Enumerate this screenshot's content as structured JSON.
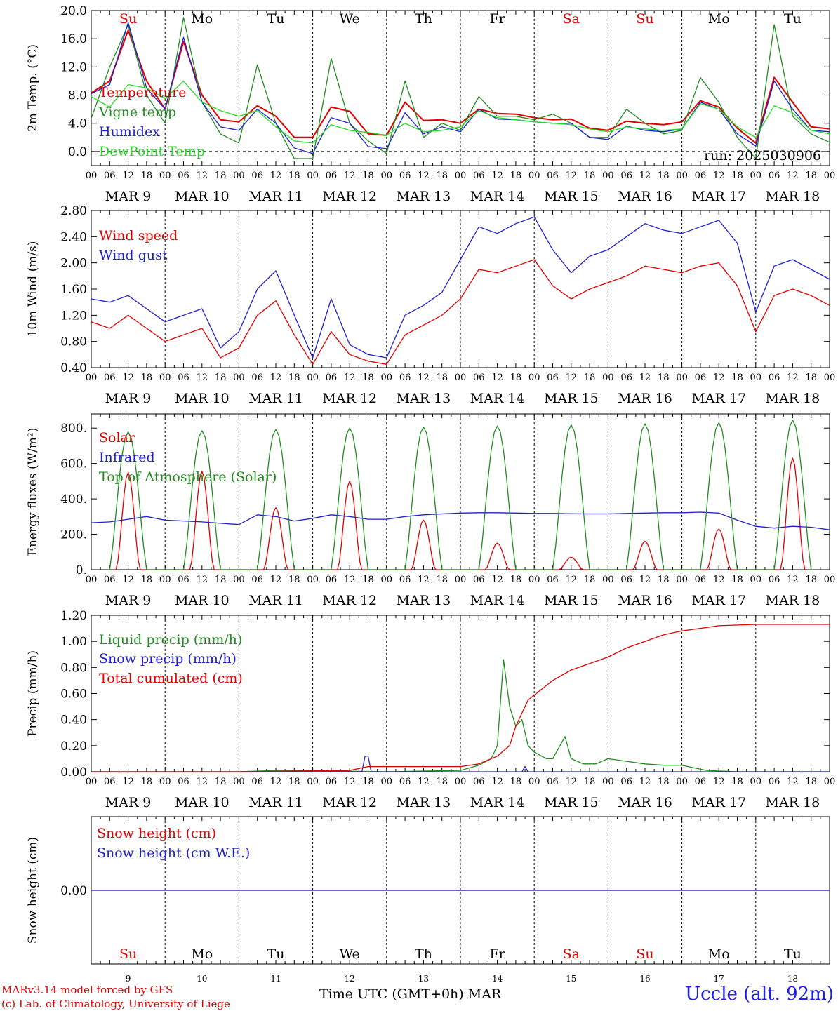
{
  "run_label": "run: 2025030906",
  "days": [
    "Su",
    "Mo",
    "Tu",
    "We",
    "Th",
    "Fr",
    "Sa",
    "Su",
    "Mo",
    "Tu"
  ],
  "day_colors": [
    "#e00000",
    "#000000",
    "#000000",
    "#000000",
    "#000000",
    "#000000",
    "#e00000",
    "#e00000",
    "#000000",
    "#000000"
  ],
  "dates": [
    "MAR  9",
    "MAR 10",
    "MAR 11",
    "MAR 12",
    "MAR 13",
    "MAR 14",
    "MAR 15",
    "MAR 16",
    "MAR 17",
    "MAR 18"
  ],
  "hour_ticks": [
    "00",
    "06",
    "12",
    "18"
  ],
  "bottom_day_numbers": [
    "9",
    "10",
    "11",
    "12",
    "13",
    "14",
    "15",
    "16",
    "17",
    "18"
  ],
  "footer": {
    "model": "MARv3.14 model forced by GFS",
    "credit": "(c) Lab. of Climatology, University of Liege",
    "xaxis": "Time UTC (GMT+0h)",
    "month": "MAR",
    "station": "Uccle (alt. 92m)"
  },
  "chart_data": [
    {
      "type": "line",
      "ylabel": "2m Temp. (°C)",
      "ylim": [
        -2,
        20
      ],
      "yticks": [
        "0.0",
        "4.0",
        "8.0",
        "12.0",
        "16.0",
        "20.0"
      ],
      "ytick_values": [
        0,
        4,
        8,
        12,
        16,
        20
      ],
      "zero_dashed": true,
      "x_hours_from_mar9_00": [
        0,
        12,
        36,
        60,
        84,
        108,
        132,
        156,
        180,
        204,
        228,
        240
      ],
      "series": [
        {
          "name": "Temperature",
          "color": "#e00000",
          "x": [
            0,
            6,
            12,
            18,
            24,
            30,
            36,
            42,
            48,
            54,
            60,
            66,
            72,
            78,
            84,
            90,
            96,
            102,
            108,
            114,
            120,
            126,
            132,
            138,
            144,
            150,
            156,
            162,
            168,
            174,
            180,
            186,
            192,
            198,
            204,
            210,
            216,
            222,
            228,
            234,
            240
          ],
          "values": [
            8.3,
            10,
            17.2,
            10,
            6,
            15.6,
            8,
            4.5,
            4.2,
            6.5,
            5,
            2,
            2,
            6.3,
            5.7,
            2.5,
            2.3,
            7,
            4.4,
            4.5,
            4,
            6,
            5.4,
            5.3,
            4.8,
            4.5,
            4.6,
            3.3,
            3,
            4.3,
            4,
            3.8,
            4.2,
            7.2,
            6.3,
            3.3,
            1.2,
            10.5,
            7,
            3.5,
            3.2
          ]
        },
        {
          "name": "Vigne temp",
          "color": "#228b22",
          "x": [
            0,
            6,
            12,
            18,
            24,
            30,
            36,
            42,
            48,
            54,
            60,
            66,
            72,
            78,
            84,
            90,
            96,
            102,
            108,
            114,
            120,
            126,
            132,
            138,
            144,
            150,
            156,
            162,
            168,
            174,
            180,
            186,
            192,
            198,
            204,
            210,
            216,
            222,
            228,
            234,
            240
          ],
          "values": [
            4.7,
            12,
            18,
            8,
            4,
            19,
            7,
            2.5,
            1.2,
            12.3,
            4,
            -1,
            -1,
            13.2,
            4,
            1.5,
            -0.3,
            10,
            2,
            4,
            3,
            7.8,
            5,
            5,
            4.5,
            5.3,
            4,
            2,
            2,
            6,
            4,
            2.5,
            3,
            10.5,
            7,
            2,
            -1,
            18,
            5,
            2.5,
            1.3
          ]
        },
        {
          "name": "Humidex",
          "color": "#2020d0",
          "x": [
            0,
            6,
            12,
            18,
            24,
            30,
            36,
            42,
            48,
            54,
            60,
            66,
            72,
            78,
            84,
            90,
            96,
            102,
            108,
            114,
            120,
            126,
            132,
            138,
            144,
            150,
            156,
            162,
            168,
            174,
            180,
            186,
            192,
            198,
            204,
            210,
            216,
            222,
            228,
            234,
            240
          ],
          "values": [
            8.2,
            9.5,
            18.3,
            9,
            6,
            16.2,
            7,
            3.5,
            3,
            6,
            4,
            0.5,
            -0.3,
            4.8,
            4,
            0.7,
            0.4,
            5.5,
            2.5,
            3.5,
            2.8,
            6,
            4.6,
            4.5,
            4.2,
            4,
            4,
            2,
            1.7,
            3.6,
            3,
            2.8,
            3.2,
            7,
            6,
            2.5,
            0.8,
            10,
            6,
            3,
            2.8
          ]
        },
        {
          "name": "DewPoint Temp",
          "color": "#22dd22",
          "x": [
            0,
            6,
            12,
            18,
            24,
            30,
            36,
            42,
            48,
            54,
            60,
            66,
            72,
            78,
            84,
            90,
            96,
            102,
            108,
            114,
            120,
            126,
            132,
            138,
            144,
            150,
            156,
            162,
            168,
            174,
            180,
            186,
            192,
            198,
            204,
            210,
            216,
            222,
            228,
            234,
            240
          ],
          "values": [
            7.8,
            6.3,
            9.5,
            9,
            7.5,
            10,
            7,
            5.8,
            5,
            5.8,
            3.5,
            1.5,
            1.2,
            3.8,
            3,
            2.7,
            2.3,
            4,
            2.8,
            3,
            3.5,
            5.8,
            4.8,
            4.5,
            4.2,
            4,
            3.8,
            3.2,
            2.8,
            3.5,
            3.2,
            3,
            3.2,
            6.8,
            6,
            3.5,
            2,
            6.5,
            5.5,
            3,
            2.5
          ]
        }
      ]
    },
    {
      "type": "line",
      "ylabel": "10m Wind (m/s)",
      "ylim": [
        0.4,
        2.8
      ],
      "yticks": [
        "0.40",
        "0.80",
        "1.20",
        "1.60",
        "2.00",
        "2.40",
        "2.80"
      ],
      "ytick_values": [
        0.4,
        0.8,
        1.2,
        1.6,
        2.0,
        2.4,
        2.8
      ],
      "series": [
        {
          "name": "Wind speed",
          "color": "#e00000",
          "x": [
            0,
            6,
            12,
            18,
            24,
            30,
            36,
            42,
            48,
            54,
            60,
            66,
            72,
            78,
            84,
            90,
            96,
            102,
            108,
            114,
            120,
            126,
            132,
            138,
            144,
            150,
            156,
            162,
            168,
            174,
            180,
            186,
            192,
            198,
            204,
            210,
            216,
            222,
            228,
            234,
            240
          ],
          "values": [
            1.1,
            1.0,
            1.2,
            1.0,
            0.8,
            0.9,
            1.0,
            0.55,
            0.7,
            1.2,
            1.42,
            0.9,
            0.45,
            0.95,
            0.6,
            0.5,
            0.45,
            0.9,
            1.05,
            1.2,
            1.45,
            1.9,
            1.85,
            1.95,
            2.05,
            1.65,
            1.45,
            1.6,
            1.7,
            1.8,
            1.95,
            1.9,
            1.85,
            1.95,
            2.0,
            1.65,
            0.95,
            1.5,
            1.6,
            1.5,
            1.35
          ]
        },
        {
          "name": "Wind gust",
          "color": "#2020d0",
          "x": [
            0,
            6,
            12,
            18,
            24,
            30,
            36,
            42,
            48,
            54,
            60,
            66,
            72,
            78,
            84,
            90,
            96,
            102,
            108,
            114,
            120,
            126,
            132,
            138,
            144,
            150,
            156,
            162,
            168,
            174,
            180,
            186,
            192,
            198,
            204,
            210,
            216,
            222,
            228,
            234,
            240
          ],
          "values": [
            1.45,
            1.4,
            1.5,
            1.3,
            1.1,
            1.2,
            1.3,
            0.7,
            0.95,
            1.6,
            1.88,
            1.2,
            0.55,
            1.45,
            0.75,
            0.6,
            0.55,
            1.2,
            1.35,
            1.55,
            2.05,
            2.55,
            2.45,
            2.6,
            2.7,
            2.2,
            1.85,
            2.1,
            2.2,
            2.4,
            2.6,
            2.5,
            2.45,
            2.55,
            2.65,
            2.3,
            1.25,
            1.95,
            2.05,
            1.9,
            1.75
          ]
        }
      ]
    },
    {
      "type": "line",
      "ylabel": "Energy fluxes (W/m²)",
      "ylim": [
        0,
        880
      ],
      "yticks": [
        "0.",
        "200.",
        "400.",
        "600.",
        "800."
      ],
      "ytick_values": [
        0,
        200,
        400,
        600,
        800
      ],
      "series": [
        {
          "name": "Solar",
          "color": "#e00000",
          "peaks": [
            550,
            555,
            350,
            500,
            280,
            150,
            70,
            160,
            230,
            630
          ]
        },
        {
          "name": "Infrared",
          "color": "#2020d0",
          "x": [
            0,
            6,
            12,
            18,
            24,
            30,
            36,
            42,
            48,
            54,
            60,
            66,
            72,
            78,
            84,
            90,
            96,
            102,
            108,
            114,
            120,
            126,
            132,
            138,
            144,
            150,
            156,
            162,
            168,
            174,
            180,
            186,
            192,
            198,
            204,
            210,
            216,
            222,
            228,
            234,
            240
          ],
          "values": [
            265,
            270,
            285,
            300,
            280,
            275,
            270,
            262,
            255,
            310,
            300,
            275,
            290,
            310,
            300,
            285,
            285,
            300,
            310,
            315,
            320,
            322,
            322,
            320,
            318,
            318,
            316,
            315,
            315,
            318,
            320,
            322,
            322,
            325,
            320,
            280,
            245,
            235,
            245,
            240,
            225
          ]
        },
        {
          "name": "Top of Atmosphere (Solar)",
          "color": "#228b22",
          "peaks": [
            778,
            785,
            792,
            800,
            806,
            812,
            818,
            824,
            830,
            845
          ]
        }
      ]
    },
    {
      "type": "line",
      "ylabel": "Precip (mm/h)",
      "ylim": [
        0,
        1.2
      ],
      "yticks": [
        "0.00",
        "0.20",
        "0.40",
        "0.60",
        "0.80",
        "1.00",
        "1.20"
      ],
      "ytick_values": [
        0,
        0.2,
        0.4,
        0.6,
        0.8,
        1.0,
        1.2
      ],
      "series": [
        {
          "name": "Liquid precip (mm/h)",
          "color": "#228b22",
          "x": [
            0,
            48,
            60,
            66,
            96,
            120,
            126,
            130,
            132,
            134,
            136,
            138,
            140,
            142,
            144,
            148,
            150,
            154,
            156,
            160,
            164,
            168,
            174,
            180,
            186,
            192,
            200,
            210,
            240
          ],
          "values": [
            0,
            0,
            0.01,
            0.01,
            0.0,
            0.01,
            0.05,
            0.1,
            0.2,
            0.86,
            0.5,
            0.35,
            0.4,
            0.2,
            0.15,
            0.1,
            0.1,
            0.27,
            0.1,
            0.06,
            0.06,
            0.1,
            0.08,
            0.06,
            0.05,
            0.05,
            0.01,
            0,
            0
          ]
        },
        {
          "name": "Snow precip (mm/h)",
          "color": "#2020d0",
          "x": [
            0,
            88,
            89,
            90,
            91,
            140,
            141,
            142,
            240
          ],
          "values": [
            0,
            0,
            0.12,
            0.12,
            0,
            0,
            0.04,
            0,
            0
          ]
        },
        {
          "name": "Total cumulated (cm)",
          "color": "#e00000",
          "x": [
            0,
            48,
            84,
            90,
            120,
            126,
            132,
            136,
            138,
            142,
            150,
            156,
            162,
            168,
            174,
            180,
            186,
            192,
            198,
            204,
            216,
            228,
            240
          ],
          "values": [
            0,
            0,
            0.01,
            0.04,
            0.04,
            0.06,
            0.12,
            0.2,
            0.35,
            0.55,
            0.7,
            0.78,
            0.83,
            0.88,
            0.95,
            1.0,
            1.05,
            1.08,
            1.1,
            1.12,
            1.13,
            1.13,
            1.13
          ]
        }
      ]
    },
    {
      "type": "line",
      "ylabel": "Snow height (cm)",
      "ylim": [
        -1,
        1
      ],
      "yticks": [
        "0.00"
      ],
      "ytick_values": [
        0
      ],
      "series": [
        {
          "name": "Snow height (cm)",
          "color": "#e00000",
          "x": [
            0,
            240
          ],
          "values": [
            0,
            0
          ]
        },
        {
          "name": "Snow height (cm W.E.)",
          "color": "#2020d0",
          "x": [
            0,
            240
          ],
          "values": [
            0,
            0
          ]
        }
      ]
    }
  ]
}
